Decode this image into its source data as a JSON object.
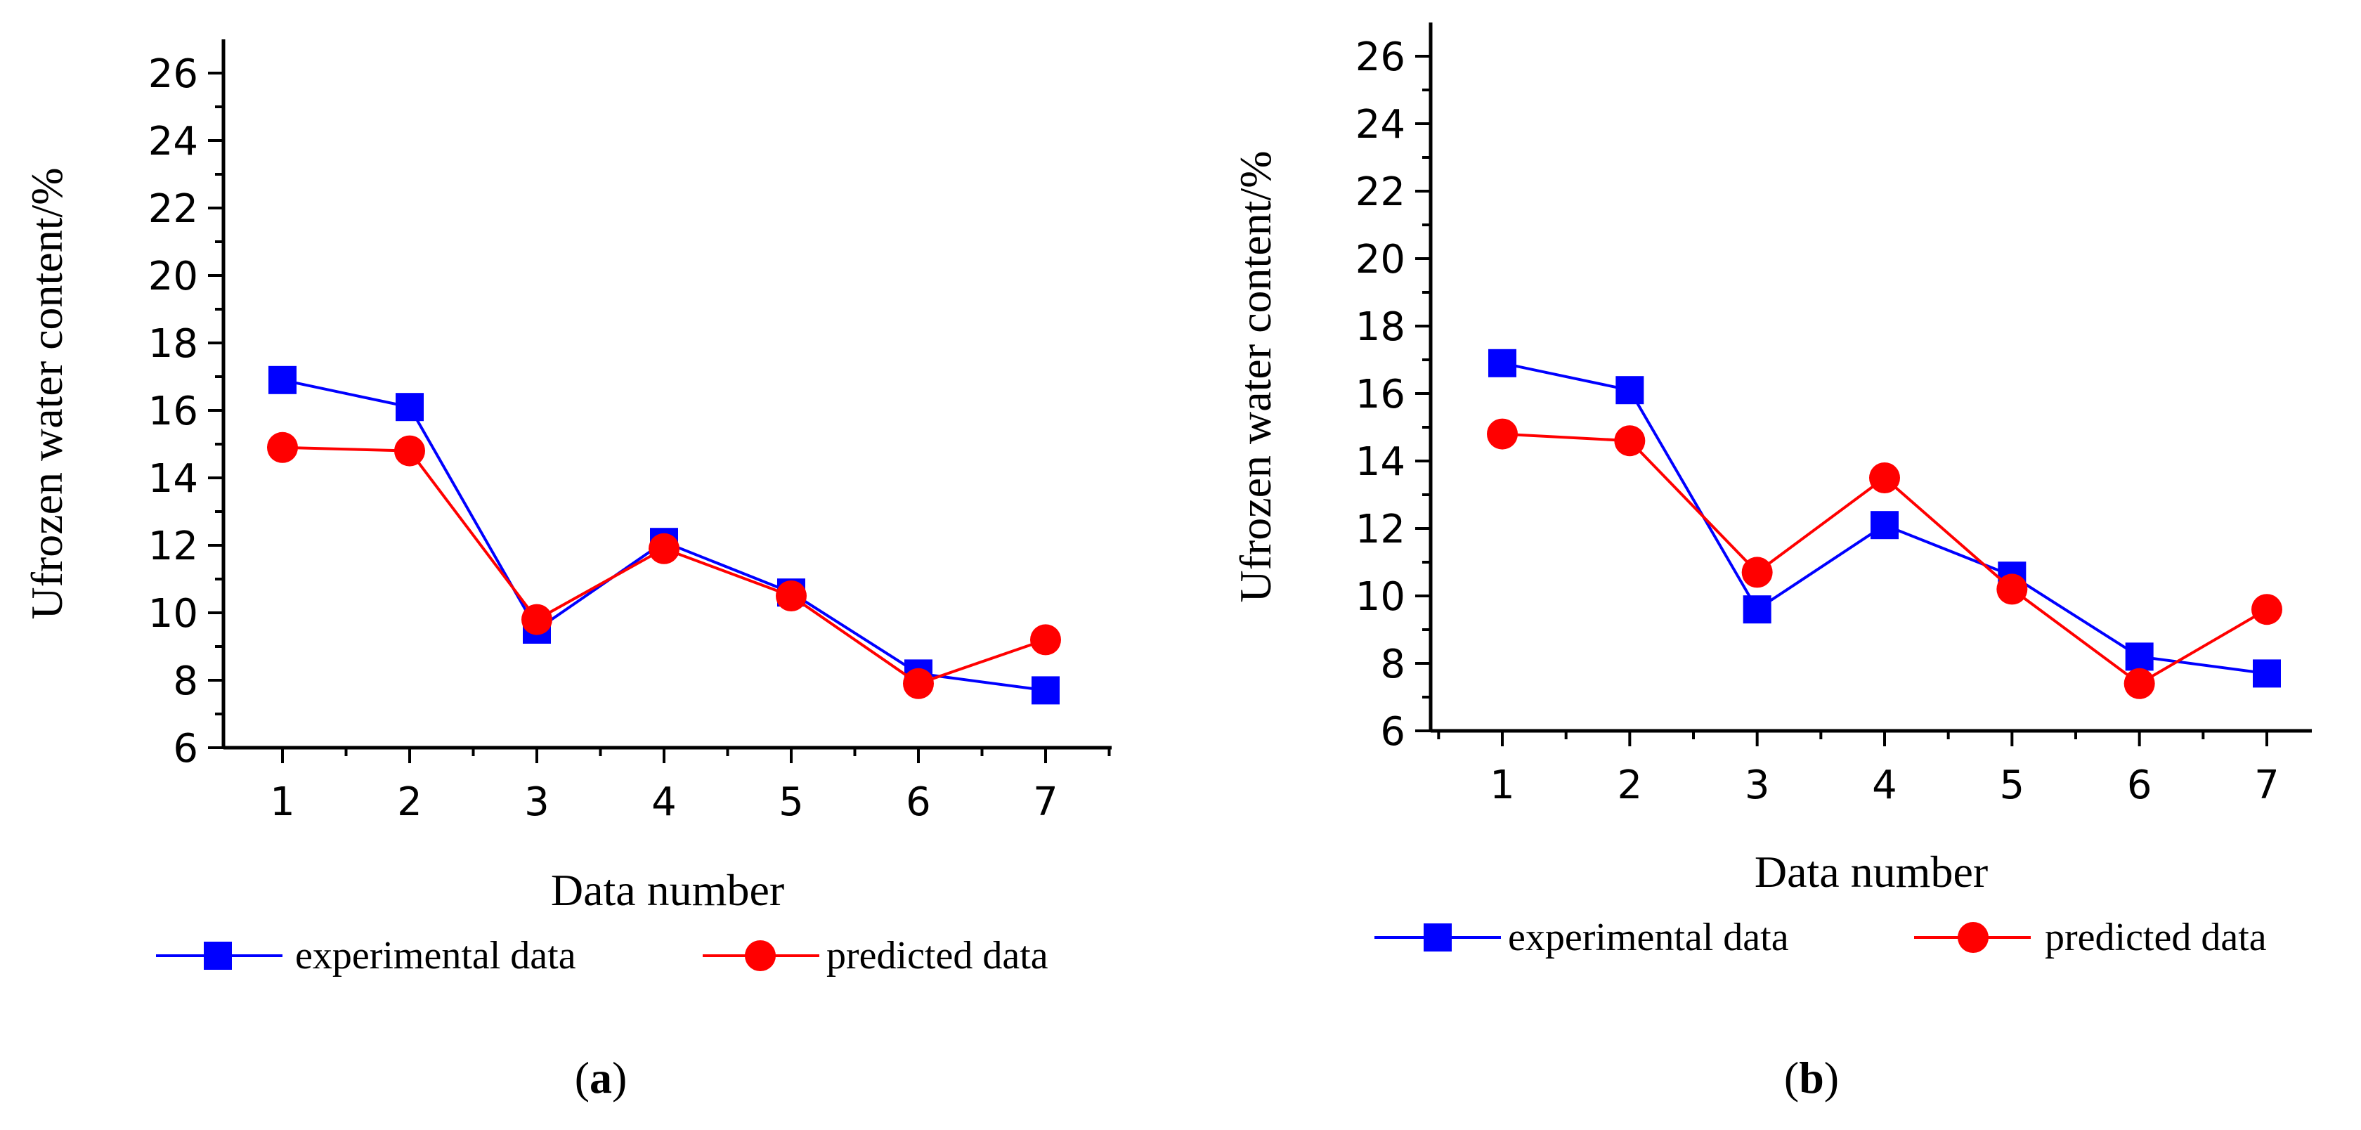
{
  "chart_data": [
    {
      "type": "line",
      "caption": "a",
      "xlabel": "Data number",
      "ylabel": "Ufrozen water content/%",
      "categories": [
        1,
        2,
        3,
        4,
        5,
        6,
        7
      ],
      "ylim": [
        6,
        27
      ],
      "yticks": [
        6,
        8,
        10,
        12,
        14,
        16,
        18,
        20,
        22,
        24,
        26
      ],
      "legend_position": "bottom",
      "series": [
        {
          "name": "experimental data",
          "marker": "square",
          "color": "#0000FF",
          "values": [
            16.9,
            16.1,
            9.5,
            12.1,
            10.6,
            8.2,
            7.7
          ]
        },
        {
          "name": "predicted data",
          "marker": "circle",
          "color": "#FF0000",
          "values": [
            14.9,
            14.8,
            9.8,
            11.9,
            10.5,
            7.9,
            9.2
          ]
        }
      ]
    },
    {
      "type": "line",
      "caption": "b",
      "xlabel": "Data number",
      "ylabel": "Ufrozen water content/%",
      "categories": [
        1,
        2,
        3,
        4,
        5,
        6,
        7
      ],
      "ylim": [
        6,
        27
      ],
      "yticks": [
        6,
        8,
        10,
        12,
        14,
        16,
        18,
        20,
        22,
        24,
        26
      ],
      "legend_position": "bottom",
      "series": [
        {
          "name": "experimental data",
          "marker": "square",
          "color": "#0000FF",
          "values": [
            16.9,
            16.1,
            9.6,
            12.1,
            10.6,
            8.2,
            7.7
          ]
        },
        {
          "name": "predicted data",
          "marker": "circle",
          "color": "#FF0000",
          "values": [
            14.8,
            14.6,
            10.7,
            13.5,
            10.2,
            7.4,
            9.6
          ]
        }
      ]
    }
  ]
}
